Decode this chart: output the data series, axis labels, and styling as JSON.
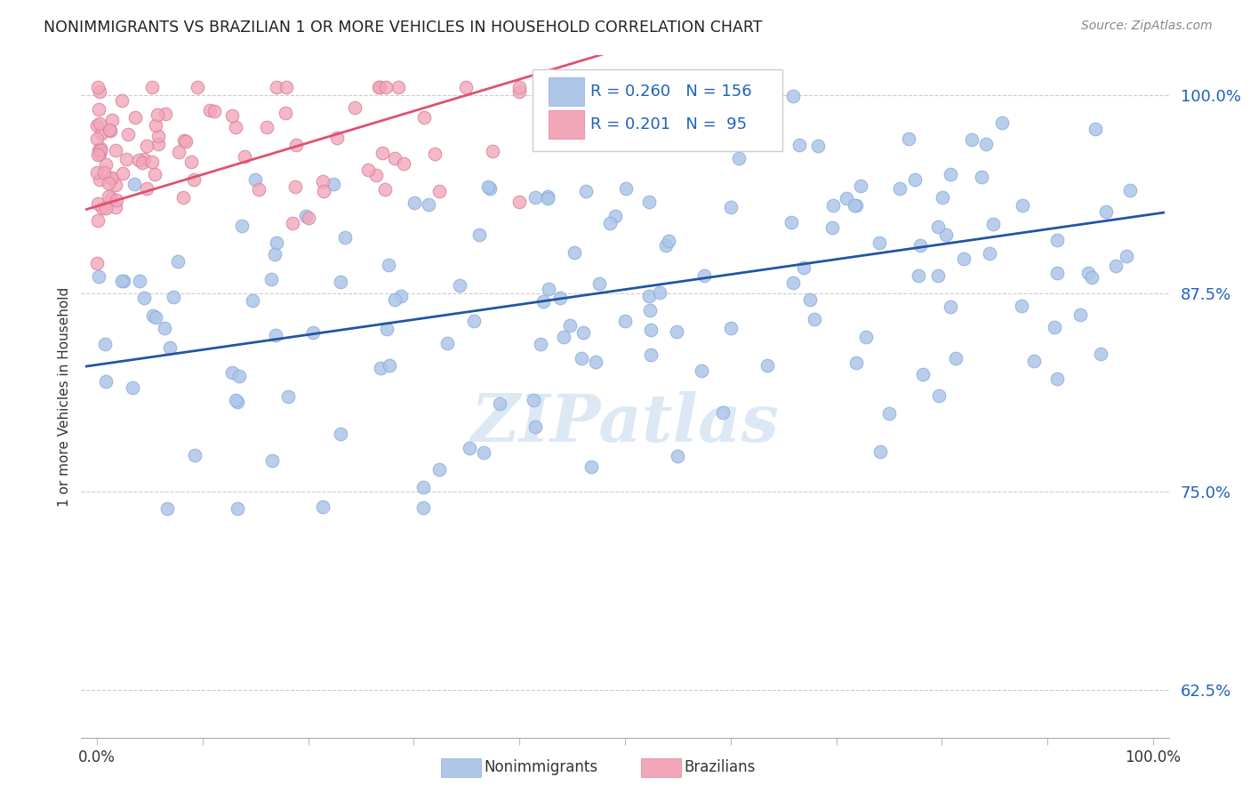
{
  "title": "NONIMMIGRANTS VS BRAZILIAN 1 OR MORE VEHICLES IN HOUSEHOLD CORRELATION CHART",
  "source": "Source: ZipAtlas.com",
  "ylabel": "1 or more Vehicles in Household",
  "ytick_labels": [
    "62.5%",
    "75.0%",
    "87.5%",
    "100.0%"
  ],
  "ytick_values": [
    0.625,
    0.75,
    0.875,
    1.0
  ],
  "xlim": [
    0.0,
    1.0
  ],
  "ylim": [
    0.595,
    1.025
  ],
  "legend_r_blue": "0.260",
  "legend_n_blue": "156",
  "legend_r_pink": "0.201",
  "legend_n_pink": "95",
  "blue_color": "#aec6e8",
  "pink_color": "#f2a7b8",
  "blue_line_color": "#2255a4",
  "pink_line_color": "#e05070",
  "legend_text_color": "#2060c0",
  "watermark": "ZIPatlas",
  "watermark_color": "#dde8f5"
}
